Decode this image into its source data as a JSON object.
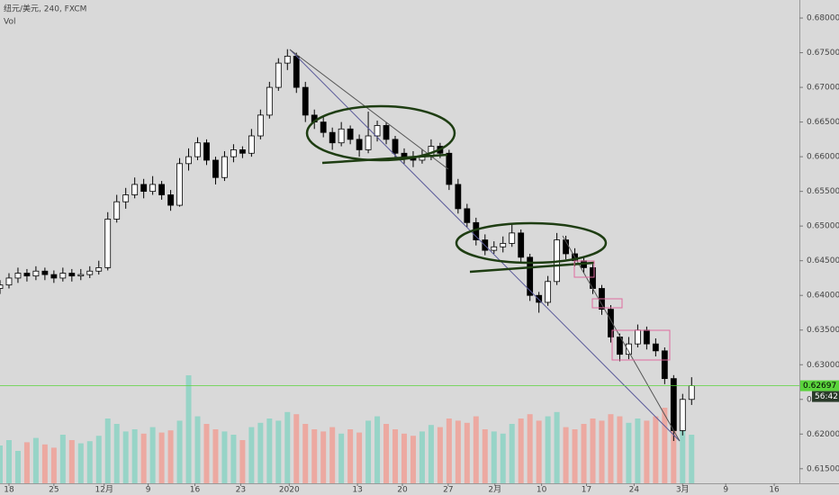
{
  "chart_data": {
    "type": "candlestick",
    "title": "纽元/美元, 240, FXCM",
    "volume_label": "Vol",
    "ylim": [
      0.6129,
      0.6826
    ],
    "yticks": [
      {
        "value": 0.615,
        "label": "0.61500"
      },
      {
        "value": 0.62,
        "label": "0.62000"
      },
      {
        "value": 0.625,
        "label": "0.62500"
      },
      {
        "value": 0.63,
        "label": "0.63000"
      },
      {
        "value": 0.635,
        "label": "0.63500"
      },
      {
        "value": 0.64,
        "label": "0.64000"
      },
      {
        "value": 0.645,
        "label": "0.64500"
      },
      {
        "value": 0.65,
        "label": "0.65000"
      },
      {
        "value": 0.655,
        "label": "0.65500"
      },
      {
        "value": 0.66,
        "label": "0.66000"
      },
      {
        "value": 0.665,
        "label": "0.66500"
      },
      {
        "value": 0.67,
        "label": "0.67000"
      },
      {
        "value": 0.675,
        "label": "0.67500"
      },
      {
        "value": 0.68,
        "label": "0.68000"
      }
    ],
    "xlim": [
      0,
      89
    ],
    "xticks": [
      {
        "value": 1,
        "label": "18"
      },
      {
        "value": 6,
        "label": "25"
      },
      {
        "value": 11.6,
        "label": "12月"
      },
      {
        "value": 16.5,
        "label": "9"
      },
      {
        "value": 21.7,
        "label": "16"
      },
      {
        "value": 26.8,
        "label": "23"
      },
      {
        "value": 32.2,
        "label": "2020"
      },
      {
        "value": 39.8,
        "label": "13"
      },
      {
        "value": 44.8,
        "label": "20"
      },
      {
        "value": 49.9,
        "label": "27"
      },
      {
        "value": 55.1,
        "label": "2月"
      },
      {
        "value": 60.3,
        "label": "10"
      },
      {
        "value": 65.3,
        "label": "17"
      },
      {
        "value": 70.6,
        "label": "24"
      },
      {
        "value": 76,
        "label": "3月"
      },
      {
        "value": 80.8,
        "label": "9"
      },
      {
        "value": 86.2,
        "label": "16"
      }
    ],
    "candles": [
      [
        0.641,
        0.6422,
        0.6402,
        0.6415
      ],
      [
        0.6415,
        0.6432,
        0.641,
        0.6425
      ],
      [
        0.6425,
        0.644,
        0.6418,
        0.6432
      ],
      [
        0.6432,
        0.6438,
        0.642,
        0.6428
      ],
      [
        0.6428,
        0.6442,
        0.6422,
        0.6435
      ],
      [
        0.6435,
        0.644,
        0.6422,
        0.643
      ],
      [
        0.643,
        0.6436,
        0.6418,
        0.6425
      ],
      [
        0.6425,
        0.644,
        0.642,
        0.6432
      ],
      [
        0.6432,
        0.6438,
        0.642,
        0.6428
      ],
      [
        0.6428,
        0.6438,
        0.6422,
        0.643
      ],
      [
        0.643,
        0.6442,
        0.6425,
        0.6435
      ],
      [
        0.6435,
        0.645,
        0.643,
        0.644
      ],
      [
        0.644,
        0.652,
        0.6436,
        0.651
      ],
      [
        0.651,
        0.6545,
        0.6505,
        0.6535
      ],
      [
        0.6535,
        0.6555,
        0.6525,
        0.6545
      ],
      [
        0.6545,
        0.657,
        0.654,
        0.656
      ],
      [
        0.656,
        0.6568,
        0.654,
        0.655
      ],
      [
        0.655,
        0.6572,
        0.6545,
        0.656
      ],
      [
        0.656,
        0.6565,
        0.6538,
        0.6545
      ],
      [
        0.6545,
        0.6552,
        0.6522,
        0.653
      ],
      [
        0.653,
        0.6598,
        0.6528,
        0.659
      ],
      [
        0.659,
        0.6612,
        0.658,
        0.66
      ],
      [
        0.66,
        0.6628,
        0.6595,
        0.662
      ],
      [
        0.662,
        0.6625,
        0.6588,
        0.6595
      ],
      [
        0.6595,
        0.66,
        0.656,
        0.657
      ],
      [
        0.657,
        0.6608,
        0.6565,
        0.66
      ],
      [
        0.66,
        0.6618,
        0.6592,
        0.661
      ],
      [
        0.661,
        0.6615,
        0.6598,
        0.6605
      ],
      [
        0.6605,
        0.664,
        0.66,
        0.663
      ],
      [
        0.663,
        0.6668,
        0.6625,
        0.666
      ],
      [
        0.666,
        0.6708,
        0.6655,
        0.67
      ],
      [
        0.67,
        0.6742,
        0.6695,
        0.6735
      ],
      [
        0.6735,
        0.6755,
        0.6725,
        0.6745
      ],
      [
        0.6745,
        0.675,
        0.6692,
        0.67
      ],
      [
        0.67,
        0.6708,
        0.665,
        0.666
      ],
      [
        0.666,
        0.6668,
        0.664,
        0.665
      ],
      [
        0.665,
        0.6658,
        0.6628,
        0.6635
      ],
      [
        0.6635,
        0.6642,
        0.661,
        0.662
      ],
      [
        0.662,
        0.665,
        0.6615,
        0.664
      ],
      [
        0.664,
        0.6645,
        0.6618,
        0.6625
      ],
      [
        0.6625,
        0.6632,
        0.66,
        0.661
      ],
      [
        0.661,
        0.6665,
        0.6605,
        0.663
      ],
      [
        0.663,
        0.6652,
        0.6622,
        0.6645
      ],
      [
        0.6645,
        0.665,
        0.6618,
        0.6625
      ],
      [
        0.6625,
        0.663,
        0.6598,
        0.6605
      ],
      [
        0.6605,
        0.6612,
        0.659,
        0.66
      ],
      [
        0.66,
        0.6608,
        0.6585,
        0.6595
      ],
      [
        0.6595,
        0.661,
        0.659,
        0.66
      ],
      [
        0.66,
        0.6625,
        0.6595,
        0.6615
      ],
      [
        0.6615,
        0.662,
        0.6598,
        0.6605
      ],
      [
        0.6605,
        0.661,
        0.6552,
        0.656
      ],
      [
        0.656,
        0.6568,
        0.6518,
        0.6525
      ],
      [
        0.6525,
        0.6532,
        0.6498,
        0.6505
      ],
      [
        0.6505,
        0.6512,
        0.6472,
        0.648
      ],
      [
        0.648,
        0.6488,
        0.6458,
        0.6465
      ],
      [
        0.6465,
        0.6478,
        0.646,
        0.647
      ],
      [
        0.647,
        0.6485,
        0.6462,
        0.6475
      ],
      [
        0.6475,
        0.6502,
        0.647,
        0.649
      ],
      [
        0.649,
        0.6495,
        0.6448,
        0.6455
      ],
      [
        0.6455,
        0.646,
        0.6392,
        0.64
      ],
      [
        0.64,
        0.6405,
        0.6375,
        0.639
      ],
      [
        0.639,
        0.6428,
        0.6385,
        0.642
      ],
      [
        0.642,
        0.649,
        0.6415,
        0.648
      ],
      [
        0.648,
        0.6486,
        0.6452,
        0.646
      ],
      [
        0.646,
        0.6468,
        0.6442,
        0.645
      ],
      [
        0.645,
        0.6455,
        0.6432,
        0.644
      ],
      [
        0.644,
        0.6445,
        0.6402,
        0.641
      ],
      [
        0.641,
        0.6415,
        0.6372,
        0.638
      ],
      [
        0.638,
        0.6386,
        0.6332,
        0.634
      ],
      [
        0.634,
        0.6345,
        0.6305,
        0.6315
      ],
      [
        0.6315,
        0.634,
        0.6308,
        0.633
      ],
      [
        0.633,
        0.6358,
        0.6325,
        0.635
      ],
      [
        0.635,
        0.6355,
        0.6322,
        0.633
      ],
      [
        0.633,
        0.6338,
        0.6312,
        0.632
      ],
      [
        0.632,
        0.6325,
        0.6272,
        0.628
      ],
      [
        0.628,
        0.6285,
        0.619,
        0.6205
      ],
      [
        0.6205,
        0.6258,
        0.6198,
        0.625
      ],
      [
        0.625,
        0.6282,
        0.6242,
        0.62697
      ]
    ],
    "volumes": [
      35,
      40,
      30,
      38,
      42,
      36,
      33,
      45,
      40,
      37,
      39,
      44,
      60,
      55,
      48,
      50,
      46,
      52,
      47,
      49,
      58,
      100,
      62,
      55,
      50,
      48,
      45,
      40,
      52,
      56,
      60,
      58,
      66,
      64,
      55,
      50,
      48,
      52,
      46,
      50,
      47,
      58,
      62,
      55,
      50,
      46,
      44,
      48,
      54,
      52,
      60,
      58,
      56,
      62,
      50,
      48,
      46,
      55,
      60,
      64,
      58,
      62,
      66,
      52,
      50,
      55,
      60,
      58,
      64,
      62,
      56,
      60,
      58,
      62,
      70,
      78,
      66,
      45
    ],
    "up_color": "#ffffff",
    "down_color": "#000000",
    "wick_color": "#000000",
    "volume_up_color": "#8fd3c4",
    "volume_down_color": "#eda39a",
    "last_price": {
      "value": 0.62697,
      "label": "0.62697"
    },
    "last_price_color": "#5ad43c",
    "countdown": "56:42"
  }
}
